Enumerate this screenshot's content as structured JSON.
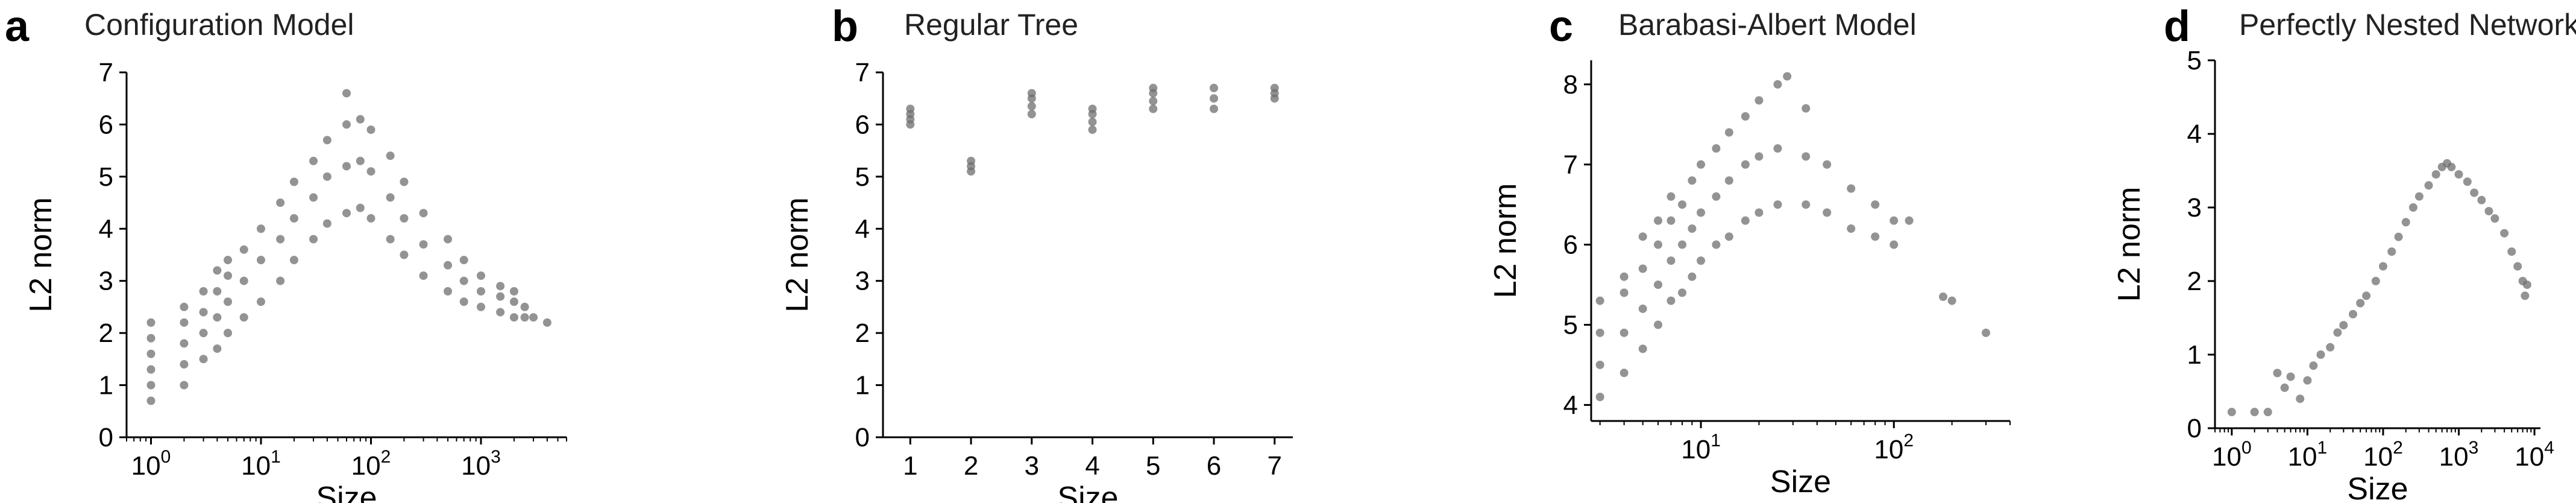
{
  "figure": {
    "panels": [
      {
        "letter": "a",
        "title": "Configuration Model",
        "xlabel": "Size",
        "ylabel": "L2 norm"
      },
      {
        "letter": "b",
        "title": "Regular Tree",
        "xlabel": "Size",
        "ylabel": "L2 norm"
      },
      {
        "letter": "c",
        "title": "Barabasi-Albert Model",
        "xlabel": "Size",
        "ylabel": "L2 norm"
      },
      {
        "letter": "d",
        "title": "Perfectly Nested Network",
        "xlabel": "Size",
        "ylabel": "L2 norm"
      }
    ]
  },
  "colors": {
    "points": "#6f6f6f",
    "axis": "#000000",
    "text": "#222222"
  },
  "chart_data": [
    {
      "type": "scatter",
      "title": "Configuration Model",
      "xlabel": "Size",
      "ylabel": "L2 norm",
      "xscale": "log",
      "xlim": [
        0.6,
        6000
      ],
      "ylim": [
        0,
        7
      ],
      "xticks": [
        {
          "base": "10",
          "exp": "0",
          "value": 1
        },
        {
          "base": "10",
          "exp": "1",
          "value": 10
        },
        {
          "base": "10",
          "exp": "2",
          "value": 100
        },
        {
          "base": "10",
          "exp": "3",
          "value": 1000
        }
      ],
      "yticks": [
        0,
        1,
        2,
        3,
        4,
        5,
        6,
        7
      ],
      "grid": false,
      "points": [
        [
          1,
          0.7
        ],
        [
          1,
          1.0
        ],
        [
          1,
          1.3
        ],
        [
          1,
          1.6
        ],
        [
          1,
          1.9
        ],
        [
          1,
          2.2
        ],
        [
          2,
          1.0
        ],
        [
          2,
          1.4
        ],
        [
          2,
          1.8
        ],
        [
          2,
          2.2
        ],
        [
          2,
          2.5
        ],
        [
          3,
          1.5
        ],
        [
          3,
          2.0
        ],
        [
          3,
          2.4
        ],
        [
          3,
          2.8
        ],
        [
          4,
          1.7
        ],
        [
          4,
          2.3
        ],
        [
          4,
          2.8
        ],
        [
          4,
          3.2
        ],
        [
          5,
          2.0
        ],
        [
          5,
          2.6
        ],
        [
          5,
          3.1
        ],
        [
          5,
          3.4
        ],
        [
          7,
          2.3
        ],
        [
          7,
          3.0
        ],
        [
          7,
          3.6
        ],
        [
          10,
          2.6
        ],
        [
          10,
          3.4
        ],
        [
          10,
          4.0
        ],
        [
          15,
          3.0
        ],
        [
          15,
          3.8
        ],
        [
          15,
          4.5
        ],
        [
          20,
          3.4
        ],
        [
          20,
          4.2
        ],
        [
          20,
          4.9
        ],
        [
          30,
          3.8
        ],
        [
          30,
          4.6
        ],
        [
          30,
          5.3
        ],
        [
          40,
          4.1
        ],
        [
          40,
          5.0
        ],
        [
          40,
          5.7
        ],
        [
          60,
          4.3
        ],
        [
          60,
          5.2
        ],
        [
          60,
          6.0
        ],
        [
          60,
          6.6
        ],
        [
          80,
          4.4
        ],
        [
          80,
          5.3
        ],
        [
          80,
          6.1
        ],
        [
          100,
          4.2
        ],
        [
          100,
          5.1
        ],
        [
          100,
          5.9
        ],
        [
          150,
          3.8
        ],
        [
          150,
          4.6
        ],
        [
          150,
          5.4
        ],
        [
          200,
          3.5
        ],
        [
          200,
          4.2
        ],
        [
          200,
          4.9
        ],
        [
          300,
          3.1
        ],
        [
          300,
          3.7
        ],
        [
          300,
          4.3
        ],
        [
          500,
          2.8
        ],
        [
          500,
          3.3
        ],
        [
          500,
          3.8
        ],
        [
          700,
          2.6
        ],
        [
          700,
          3.0
        ],
        [
          700,
          3.4
        ],
        [
          1000,
          2.5
        ],
        [
          1000,
          2.8
        ],
        [
          1000,
          3.1
        ],
        [
          1500,
          2.4
        ],
        [
          1500,
          2.7
        ],
        [
          1500,
          2.9
        ],
        [
          2000,
          2.3
        ],
        [
          2000,
          2.6
        ],
        [
          2000,
          2.8
        ],
        [
          2500,
          2.3
        ],
        [
          2500,
          2.5
        ],
        [
          3000,
          2.3
        ],
        [
          4000,
          2.2
        ]
      ]
    },
    {
      "type": "scatter",
      "title": "Regular Tree",
      "xlabel": "Size",
      "ylabel": "L2 norm",
      "xscale": "linear",
      "xlim": [
        0.55,
        7.3
      ],
      "ylim": [
        0,
        7
      ],
      "xticks": [
        1,
        2,
        3,
        4,
        5,
        6,
        7
      ],
      "yticks": [
        0,
        1,
        2,
        3,
        4,
        5,
        6,
        7
      ],
      "grid": false,
      "points": [
        [
          1,
          6.0
        ],
        [
          1,
          6.1
        ],
        [
          1,
          6.2
        ],
        [
          1,
          6.3
        ],
        [
          2,
          5.1
        ],
        [
          2,
          5.2
        ],
        [
          2,
          5.3
        ],
        [
          3,
          6.2
        ],
        [
          3,
          6.35
        ],
        [
          3,
          6.5
        ],
        [
          3,
          6.6
        ],
        [
          4,
          5.9
        ],
        [
          4,
          6.05
        ],
        [
          4,
          6.2
        ],
        [
          4,
          6.3
        ],
        [
          5,
          6.3
        ],
        [
          5,
          6.45
        ],
        [
          5,
          6.6
        ],
        [
          5,
          6.7
        ],
        [
          6,
          6.3
        ],
        [
          6,
          6.5
        ],
        [
          6,
          6.7
        ],
        [
          7,
          6.5
        ],
        [
          7,
          6.6
        ],
        [
          7,
          6.7
        ]
      ]
    },
    {
      "type": "scatter",
      "title": "Barabasi-Albert Model",
      "xlabel": "Size",
      "ylabel": "L2 norm",
      "xscale": "log",
      "xlim": [
        2.7,
        400
      ],
      "ylim": [
        3.8,
        8.3
      ],
      "xticks": [
        {
          "base": "10",
          "exp": "1",
          "value": 10
        },
        {
          "base": "10",
          "exp": "2",
          "value": 100
        }
      ],
      "yticks": [
        4,
        5,
        6,
        7,
        8
      ],
      "grid": false,
      "points": [
        [
          3,
          4.1
        ],
        [
          3,
          4.5
        ],
        [
          3,
          4.9
        ],
        [
          3,
          5.3
        ],
        [
          4,
          4.4
        ],
        [
          4,
          4.9
        ],
        [
          4,
          5.4
        ],
        [
          4,
          5.6
        ],
        [
          5,
          4.7
        ],
        [
          5,
          5.2
        ],
        [
          5,
          5.7
        ],
        [
          5,
          6.1
        ],
        [
          6,
          5.0
        ],
        [
          6,
          5.5
        ],
        [
          6,
          6.0
        ],
        [
          6,
          6.3
        ],
        [
          7,
          5.3
        ],
        [
          7,
          5.8
        ],
        [
          7,
          6.3
        ],
        [
          7,
          6.6
        ],
        [
          8,
          5.4
        ],
        [
          8,
          6.0
        ],
        [
          8,
          6.5
        ],
        [
          9,
          5.6
        ],
        [
          9,
          6.2
        ],
        [
          9,
          6.8
        ],
        [
          10,
          5.8
        ],
        [
          10,
          6.4
        ],
        [
          10,
          7.0
        ],
        [
          12,
          6.0
        ],
        [
          12,
          6.6
        ],
        [
          12,
          7.2
        ],
        [
          14,
          6.1
        ],
        [
          14,
          6.8
        ],
        [
          14,
          7.4
        ],
        [
          17,
          6.3
        ],
        [
          17,
          7.0
        ],
        [
          17,
          7.6
        ],
        [
          20,
          6.4
        ],
        [
          20,
          7.1
        ],
        [
          20,
          7.8
        ],
        [
          25,
          6.5
        ],
        [
          25,
          7.2
        ],
        [
          25,
          8.0
        ],
        [
          28,
          8.1
        ],
        [
          35,
          6.5
        ],
        [
          35,
          7.1
        ],
        [
          35,
          7.7
        ],
        [
          45,
          6.4
        ],
        [
          45,
          7.0
        ],
        [
          60,
          6.2
        ],
        [
          60,
          6.7
        ],
        [
          80,
          6.1
        ],
        [
          80,
          6.5
        ],
        [
          100,
          6.0
        ],
        [
          100,
          6.3
        ],
        [
          120,
          6.3
        ],
        [
          180,
          5.35
        ],
        [
          200,
          5.3
        ],
        [
          300,
          4.9
        ]
      ]
    },
    {
      "type": "scatter",
      "title": "Perfectly Nested Network",
      "xlabel": "Size",
      "ylabel": "L2 norm",
      "xscale": "log",
      "xlim": [
        0.6,
        12000
      ],
      "ylim": [
        0,
        5
      ],
      "xticks": [
        {
          "base": "10",
          "exp": "0",
          "value": 1
        },
        {
          "base": "10",
          "exp": "1",
          "value": 10
        },
        {
          "base": "10",
          "exp": "2",
          "value": 100
        },
        {
          "base": "10",
          "exp": "3",
          "value": 1000
        },
        {
          "base": "10",
          "exp": "4",
          "value": 10000
        }
      ],
      "yticks": [
        0,
        1,
        2,
        3,
        4,
        5
      ],
      "grid": false,
      "points": [
        [
          1,
          0.22
        ],
        [
          2,
          0.22
        ],
        [
          3,
          0.22
        ],
        [
          4,
          0.75
        ],
        [
          5,
          0.55
        ],
        [
          6,
          0.7
        ],
        [
          8,
          0.4
        ],
        [
          10,
          0.65
        ],
        [
          12,
          0.85
        ],
        [
          15,
          1.0
        ],
        [
          20,
          1.1
        ],
        [
          25,
          1.3
        ],
        [
          30,
          1.4
        ],
        [
          40,
          1.55
        ],
        [
          50,
          1.7
        ],
        [
          60,
          1.8
        ],
        [
          80,
          2.0
        ],
        [
          100,
          2.2
        ],
        [
          130,
          2.4
        ],
        [
          160,
          2.6
        ],
        [
          200,
          2.8
        ],
        [
          250,
          3.0
        ],
        [
          300,
          3.15
        ],
        [
          400,
          3.3
        ],
        [
          500,
          3.45
        ],
        [
          600,
          3.55
        ],
        [
          700,
          3.6
        ],
        [
          800,
          3.55
        ],
        [
          1000,
          3.45
        ],
        [
          1300,
          3.35
        ],
        [
          1600,
          3.2
        ],
        [
          2000,
          3.1
        ],
        [
          2500,
          2.95
        ],
        [
          3000,
          2.85
        ],
        [
          4000,
          2.65
        ],
        [
          5000,
          2.4
        ],
        [
          6000,
          2.2
        ],
        [
          7000,
          2.0
        ],
        [
          7500,
          1.8
        ],
        [
          8000,
          1.95
        ]
      ]
    }
  ]
}
